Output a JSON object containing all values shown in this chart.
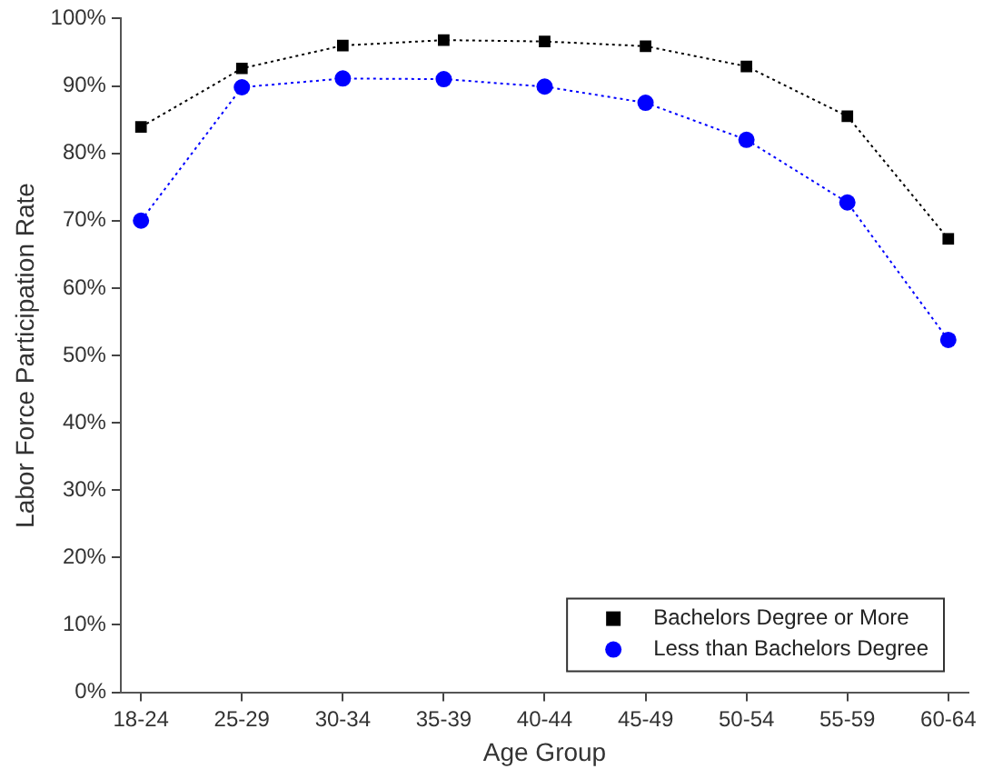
{
  "chart_data": {
    "type": "line",
    "xlabel": "Age Group",
    "ylabel": "Labor Force Participation Rate",
    "categories": [
      "18-24",
      "25-29",
      "30-34",
      "35-39",
      "40-44",
      "45-49",
      "50-54",
      "55-59",
      "60-64"
    ],
    "series": [
      {
        "name": "Bachelors Degree or More",
        "color": "#000000",
        "marker": "square",
        "values": [
          83.9,
          92.6,
          96.0,
          96.8,
          96.6,
          95.9,
          92.9,
          85.5,
          67.3
        ]
      },
      {
        "name": "Less than Bachelors Degree",
        "color": "#0000ff",
        "marker": "circle",
        "values": [
          70.0,
          89.8,
          91.1,
          91.0,
          89.9,
          87.5,
          82.0,
          72.7,
          52.3
        ]
      }
    ],
    "ylim": [
      0,
      100
    ],
    "yticks": [
      {
        "value": 0,
        "label": "0%"
      },
      {
        "value": 10,
        "label": "10%"
      },
      {
        "value": 20,
        "label": "20%"
      },
      {
        "value": 30,
        "label": "30%"
      },
      {
        "value": 40,
        "label": "40%"
      },
      {
        "value": 50,
        "label": "50%"
      },
      {
        "value": 60,
        "label": "60%"
      },
      {
        "value": 70,
        "label": "70%"
      },
      {
        "value": 80,
        "label": "80%"
      },
      {
        "value": 90,
        "label": "90%"
      },
      {
        "value": 100,
        "label": "100%"
      }
    ],
    "grid": false,
    "legend": "bottom right",
    "line_style": "dotted"
  }
}
